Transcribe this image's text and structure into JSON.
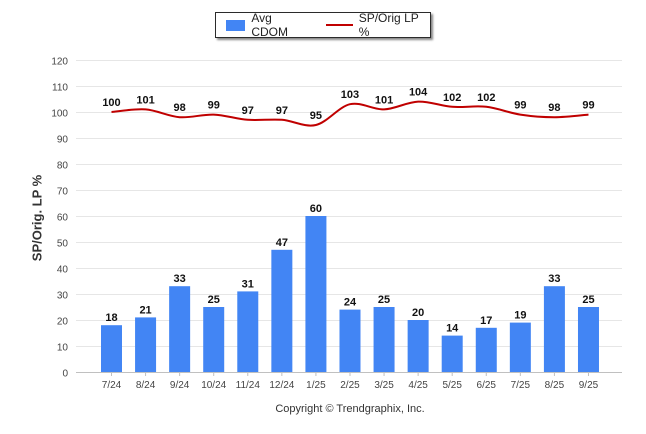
{
  "chart_data": {
    "type": "bar+line",
    "title": "",
    "ylabel": "SP/Orig. LP %",
    "xlabel": "",
    "ylim": [
      0,
      120
    ],
    "yticks": [
      0,
      10,
      20,
      30,
      40,
      50,
      60,
      70,
      80,
      90,
      100,
      110,
      120
    ],
    "categories": [
      "7/24",
      "8/24",
      "9/24",
      "10/24",
      "11/24",
      "12/24",
      "1/25",
      "2/25",
      "3/25",
      "4/25",
      "5/25",
      "6/25",
      "7/25",
      "8/25",
      "9/25"
    ],
    "series": [
      {
        "name": "Avg CDOM",
        "kind": "bar",
        "color": "#4285f4",
        "values": [
          18,
          21,
          33,
          25,
          31,
          47,
          60,
          24,
          25,
          20,
          14,
          17,
          19,
          33,
          25
        ]
      },
      {
        "name": "SP/Orig LP %",
        "kind": "line",
        "color": "#c00000",
        "values": [
          100,
          101,
          98,
          99,
          97,
          97,
          95,
          103,
          101,
          104,
          102,
          102,
          99,
          98,
          99
        ]
      }
    ],
    "legend_position": "top-center",
    "grid": true
  },
  "footer": {
    "copyright": "Copyright © Trendgraphix, Inc."
  }
}
